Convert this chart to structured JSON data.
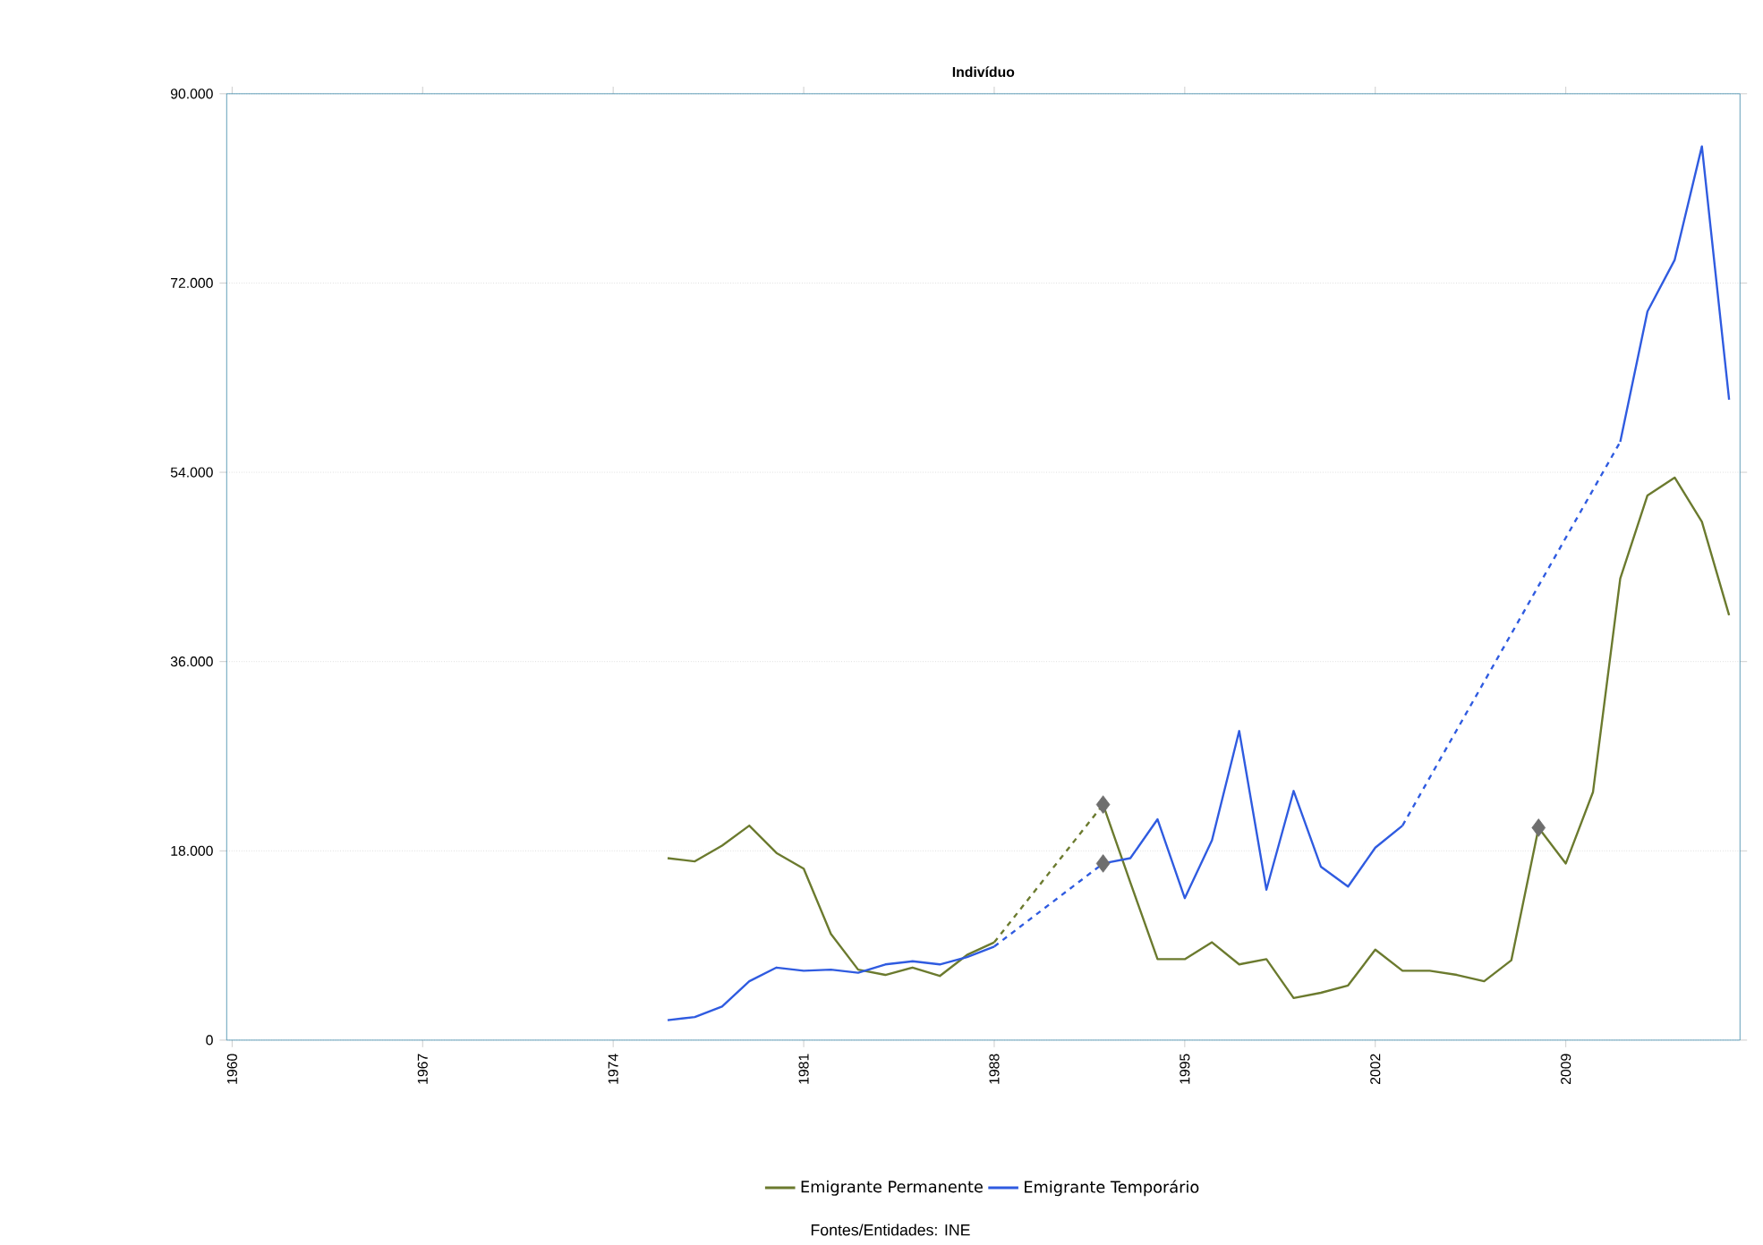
{
  "chart_data": {
    "type": "line",
    "title": "Indivíduo",
    "series": [
      {
        "name": "Emigrante Permanente",
        "color": "#6b7a2e",
        "x": [
          1976,
          1977,
          1978,
          1979,
          1980,
          1981,
          1982,
          1983,
          1984,
          1985,
          1986,
          1987,
          1988,
          1992,
          1993,
          1994,
          1995,
          1996,
          1997,
          1998,
          1999,
          2000,
          2001,
          2002,
          2003,
          2004,
          2005,
          2006,
          2007,
          2008,
          2009,
          2010,
          2011,
          2012,
          2013,
          2014,
          2015
        ],
        "values": [
          17300,
          17000,
          18500,
          20400,
          17800,
          16300,
          10100,
          6700,
          6200,
          6900,
          6100,
          8100,
          9300,
          22400,
          15000,
          7700,
          7700,
          9300,
          7200,
          7700,
          4000,
          4500,
          5200,
          8600,
          6600,
          6600,
          6200,
          5600,
          7600,
          20200,
          16800,
          23600,
          43900,
          51800,
          53500,
          49300,
          40400
        ]
      },
      {
        "name": "Emigrante Temporário",
        "color": "#2f5be0",
        "x": [
          1976,
          1977,
          1978,
          1979,
          1980,
          1981,
          1982,
          1983,
          1984,
          1985,
          1986,
          1987,
          1988,
          1992,
          1993,
          1994,
          1995,
          1996,
          1997,
          1998,
          1999,
          2000,
          2001,
          2002,
          2003,
          2011,
          2012,
          2013,
          2014,
          2015
        ],
        "values": [
          1900,
          2200,
          3200,
          5600,
          6900,
          6600,
          6700,
          6400,
          7200,
          7500,
          7200,
          7900,
          8900,
          16800,
          17300,
          21000,
          13500,
          19000,
          29400,
          14300,
          23700,
          16500,
          14600,
          18300,
          20400,
          56900,
          69300,
          74200,
          85000,
          60900
        ]
      },
      {
        "type": "scatter",
        "marker": "diamond",
        "color": "#6e6e6e",
        "x": [
          1992,
          1992,
          2008
        ],
        "values": [
          22400,
          16800,
          20200
        ]
      }
    ],
    "xlim": [
      1959.8,
      2015.4
    ],
    "xticks": [
      1960,
      1967,
      1974,
      1981,
      1988,
      1995,
      2002,
      2009
    ],
    "ylim": [
      0,
      90000
    ],
    "yticks": [
      {
        "value": 0,
        "label": "0"
      },
      {
        "value": 18000,
        "label": "18.000"
      },
      {
        "value": 36000,
        "label": "36.000"
      },
      {
        "value": 54000,
        "label": "54.000"
      },
      {
        "value": 72000,
        "label": "72.000"
      },
      {
        "value": 90000,
        "label": "90.000"
      }
    ],
    "grid": "y",
    "legend": "bottom",
    "marker": "none",
    "line_style": "solid",
    "annotations": [
      "Fontes/Entidades: INE"
    ]
  }
}
